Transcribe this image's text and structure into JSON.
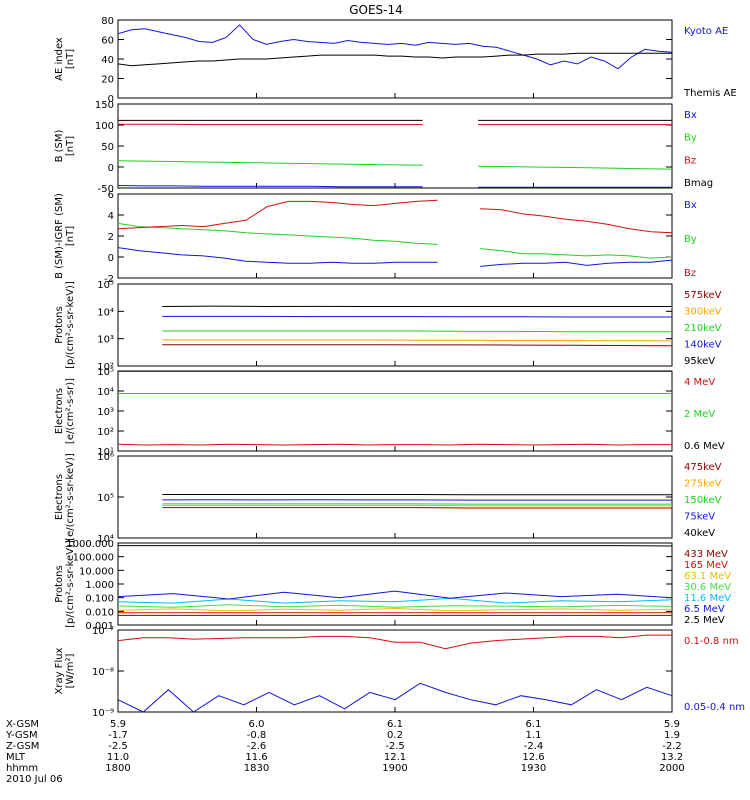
{
  "title": "GOES-14",
  "date_label": "2010 Jul 06",
  "colors": {
    "black": "#000000",
    "blue": "#1515d6",
    "green": "#22d022",
    "red": "#cc1010",
    "orange": "#ffa500",
    "cyan": "#00c0ff",
    "gold": "#e0c000",
    "lime": "#44dd44",
    "maroon": "#8b0000",
    "purple": "#a020a0"
  },
  "footer": {
    "rows": [
      {
        "label": "X-GSM",
        "values": [
          "5.9",
          "6.0",
          "6.1",
          "6.1",
          "5.9"
        ]
      },
      {
        "label": "Y-GSM",
        "values": [
          "-1.7",
          "-0.8",
          "0.2",
          "1.1",
          "1.9"
        ]
      },
      {
        "label": "Z-GSM",
        "values": [
          "-2.5",
          "-2.6",
          "-2.5",
          "-2.4",
          "-2.2"
        ]
      },
      {
        "label": "MLT",
        "values": [
          "11.0",
          "11.6",
          "12.1",
          "12.6",
          "13.2"
        ]
      },
      {
        "label": "hhmm",
        "values": [
          "1800",
          "1830",
          "1900",
          "1930",
          "2000"
        ]
      }
    ]
  },
  "chart_data": [
    {
      "type": "line",
      "id": "ae",
      "ylabel": "AE index\n[nT]",
      "ylim": [
        0,
        80
      ],
      "scale": "linear",
      "ticks": [
        "0",
        "20",
        "40",
        "60",
        "80"
      ],
      "tickvals": [
        0,
        20,
        40,
        60,
        80
      ],
      "x_range": [
        "18:00",
        "20:00"
      ],
      "series": [
        {
          "name": "Kyoto AE",
          "color": "#1515d6",
          "values": [
            66,
            70,
            71,
            68,
            65,
            62,
            58,
            57,
            62,
            75,
            60,
            55,
            58,
            60,
            58,
            57,
            56,
            59,
            57,
            56,
            55,
            56,
            54,
            57,
            56,
            55,
            56,
            53,
            52,
            48,
            44,
            40,
            34,
            38,
            35,
            42,
            38,
            30,
            42,
            50,
            48,
            47
          ]
        },
        {
          "name": "Themis AE",
          "color": "#000000",
          "values": [
            35,
            33,
            34,
            35,
            36,
            37,
            38,
            38,
            39,
            40,
            40,
            40,
            41,
            42,
            43,
            44,
            44,
            44,
            44,
            44,
            43,
            43,
            42,
            42,
            41,
            42,
            42,
            42,
            43,
            44,
            44,
            45,
            45,
            45,
            46,
            46,
            46,
            46,
            46,
            46,
            46,
            46
          ]
        }
      ]
    },
    {
      "type": "line",
      "id": "bsm",
      "ylabel": "B (SM)\n[nT]",
      "ylim": [
        -50,
        150
      ],
      "scale": "linear",
      "ticks": [
        "-50",
        "0",
        "50",
        "100",
        "150"
      ],
      "tickvals": [
        -50,
        0,
        50,
        100,
        150
      ],
      "gap": [
        0.58,
        0.63
      ],
      "series": [
        {
          "name": "Bx",
          "color": "#1515d6",
          "values": [
            -44,
            -45,
            -45,
            -46,
            -46,
            -46,
            -46,
            -46,
            -47,
            -47,
            -47,
            -47,
            -47,
            -48,
            -48,
            -48,
            -48,
            -48,
            -48,
            -48,
            -48
          ]
        },
        {
          "name": "By",
          "color": "#22d022",
          "values": [
            15,
            14,
            13,
            12,
            11,
            10,
            9,
            8,
            7,
            6,
            5,
            4,
            3,
            2,
            1,
            0,
            -1,
            -2,
            -3,
            -4,
            -5
          ]
        },
        {
          "name": "Bz",
          "color": "#cc1010",
          "values": [
            102,
            102,
            102,
            101,
            101,
            101,
            101,
            101,
            101,
            101,
            101,
            101,
            101,
            101,
            101,
            101,
            101,
            101,
            101,
            101,
            101
          ]
        },
        {
          "name": "Bmag",
          "color": "#000000",
          "values": [
            111,
            111,
            111,
            111,
            111,
            111,
            111,
            111,
            111,
            111,
            111,
            111,
            111,
            111,
            111,
            111,
            111,
            111,
            111,
            111,
            111
          ]
        }
      ]
    },
    {
      "type": "line",
      "id": "bigrf",
      "ylabel": "B (SM)-IGRF (SM)\n[nT]",
      "ylim": [
        -2,
        6
      ],
      "scale": "linear",
      "ticks": [
        "-2",
        "0",
        "2",
        "4",
        "6"
      ],
      "tickvals": [
        -2,
        0,
        2,
        4,
        6
      ],
      "gap": [
        0.58,
        0.63
      ],
      "series": [
        {
          "name": "Bx",
          "color": "#1515d6",
          "values": [
            0.9,
            0.6,
            0.4,
            0.2,
            0.1,
            -0.1,
            -0.4,
            -0.5,
            -0.6,
            -0.6,
            -0.5,
            -0.6,
            -0.6,
            -0.5,
            -0.5,
            -0.5,
            -0.7,
            -0.9,
            -0.7,
            -0.6,
            -0.6,
            -0.5,
            -0.8,
            -0.6,
            -0.5,
            -0.5,
            -0.3
          ]
        },
        {
          "name": "By",
          "color": "#22d022",
          "values": [
            3.2,
            2.9,
            2.8,
            2.7,
            2.6,
            2.5,
            2.3,
            2.2,
            2.1,
            2.0,
            1.9,
            1.8,
            1.6,
            1.5,
            1.3,
            1.2,
            1.0,
            0.8,
            0.6,
            0.3,
            0.3,
            0.2,
            0.1,
            0.2,
            0.1,
            -0.1,
            0.0
          ]
        },
        {
          "name": "Bz",
          "color": "#cc1010",
          "values": [
            2.7,
            2.8,
            2.9,
            3.0,
            2.9,
            3.2,
            3.5,
            4.8,
            5.3,
            5.3,
            5.2,
            5.0,
            4.9,
            5.1,
            5.3,
            5.4,
            5.1,
            4.6,
            4.5,
            4.1,
            3.9,
            3.6,
            3.4,
            3.1,
            2.7,
            2.4,
            2.3
          ]
        }
      ]
    },
    {
      "type": "line",
      "id": "protons1",
      "ylabel": "Protons\n[p/(cm²-s-sr-keV)]",
      "ylim": [
        100,
        100000
      ],
      "scale": "log",
      "ticks": [
        "10²",
        "10³",
        "10⁴",
        "10⁵"
      ],
      "tickvals": [
        100,
        1000,
        10000,
        100000
      ],
      "x_start": 0.08,
      "series": [
        {
          "name": "575keV",
          "color": "#8b0000",
          "values": [
            600,
            600,
            600,
            600,
            600,
            590,
            590,
            580,
            570,
            560,
            550
          ]
        },
        {
          "name": "300keV",
          "color": "#ffa500",
          "values": [
            900,
            900,
            900,
            900,
            900,
            880,
            870,
            860,
            850,
            840,
            830
          ]
        },
        {
          "name": "210keV",
          "color": "#22d022",
          "values": [
            1900,
            1900,
            1900,
            1900,
            1900,
            1900,
            1850,
            1850,
            1800,
            1800,
            1800
          ]
        },
        {
          "name": "140keV",
          "color": "#1515d6",
          "values": [
            6500,
            6500,
            6500,
            6400,
            6400,
            6400,
            6300,
            6300,
            6200,
            6200,
            6200
          ]
        },
        {
          "name": "95keV",
          "color": "#000000",
          "values": [
            15000,
            15500,
            15000,
            15200,
            15000,
            15000,
            15000,
            15000,
            15000,
            15000,
            15000
          ]
        }
      ]
    },
    {
      "type": "line",
      "id": "electrons1",
      "ylabel": "Electrons\n[e/(cm²-s-sr)]",
      "ylim": [
        10,
        100000
      ],
      "scale": "log",
      "ticks": [
        "10¹",
        "10²",
        "10³",
        "10⁴",
        "10⁵"
      ],
      "tickvals": [
        10,
        100,
        1000,
        10000,
        100000
      ],
      "series": [
        {
          "name": "4 MeV",
          "color": "#cc1010",
          "values": [
            22,
            20,
            21,
            20,
            22,
            21,
            20,
            21,
            22,
            20,
            21,
            21,
            20,
            22,
            21,
            20,
            21,
            22,
            20,
            21,
            21
          ]
        },
        {
          "name": "2 MeV",
          "color": "#22d022",
          "values": [
            7500,
            7500,
            7500,
            7500,
            7500,
            7500,
            7500,
            7500,
            7500,
            7500,
            7500,
            7500,
            7500,
            7500,
            7500,
            7500,
            7500,
            7500,
            7500,
            7500,
            7500
          ]
        },
        {
          "name": "0.6 MeV",
          "color": "#000000",
          "values": [
            98000,
            98000,
            98000,
            98000,
            98000,
            98000,
            98000,
            98000,
            98000,
            98000,
            98000,
            98000,
            98000,
            98000,
            98000,
            98000,
            98000,
            98000,
            98000,
            98000,
            98000
          ]
        }
      ]
    },
    {
      "type": "line",
      "id": "electrons2",
      "ylabel": "Electrons\n[e/(cm²-s-sr-keV)]",
      "ylim": [
        10000,
        1000000
      ],
      "scale": "log",
      "ticks": [
        "10⁴",
        "10⁵",
        "10⁶"
      ],
      "tickvals": [
        10000,
        100000,
        1000000
      ],
      "x_start": 0.08,
      "series": [
        {
          "name": "475keV",
          "color": "#8b0000",
          "values": [
            55000,
            55000,
            55000,
            55000,
            55000,
            55000,
            54000,
            54000,
            54000,
            54000,
            54000
          ]
        },
        {
          "name": "275keV",
          "color": "#ffa500",
          "values": [
            62000,
            62000,
            62000,
            62000,
            62000,
            62000,
            61000,
            61000,
            61000,
            61000,
            61000
          ]
        },
        {
          "name": "150keV",
          "color": "#22d022",
          "values": [
            68000,
            68000,
            68000,
            68000,
            68000,
            68000,
            67000,
            67000,
            67000,
            67000,
            67000
          ]
        },
        {
          "name": "75keV",
          "color": "#1515d6",
          "values": [
            85000,
            86000,
            85000,
            86000,
            85000,
            85000,
            84000,
            84000,
            84000,
            84000,
            84000
          ]
        },
        {
          "name": "40keV",
          "color": "#000000",
          "values": [
            115000,
            115000,
            115000,
            115000,
            115000,
            115000,
            114000,
            114000,
            114000,
            114000,
            114000
          ]
        }
      ]
    },
    {
      "type": "line",
      "id": "protons2",
      "ylabel": "Protons\n[p/(cm²-s-sr-keV)]",
      "ylim": [
        0.001,
        1000
      ],
      "scale": "log",
      "ticks": [
        "0.001",
        "0.010",
        "0.100",
        "1.000",
        "10.000",
        "100.000",
        "1000.000"
      ],
      "tickvals": [
        0.001,
        0.01,
        0.1,
        1,
        10,
        100,
        1000
      ],
      "series": [
        {
          "name": "433 MeV",
          "color": "#8b0000",
          "values": [
            0.005,
            0.005,
            0.005,
            0.005,
            0.005,
            0.005,
            0.005,
            0.005,
            0.005,
            0.005,
            0.005
          ]
        },
        {
          "name": "165 MeV",
          "color": "#cc1010",
          "values": [
            0.008,
            0.008,
            0.008,
            0.008,
            0.008,
            0.008,
            0.008,
            0.008,
            0.008,
            0.008,
            0.008
          ]
        },
        {
          "name": "63.1 MeV",
          "color": "#e0c000",
          "values": [
            0.012,
            0.015,
            0.011,
            0.014,
            0.012,
            0.016,
            0.011,
            0.013,
            0.015,
            0.012,
            0.014
          ]
        },
        {
          "name": "30.6 MeV",
          "color": "#44dd44",
          "values": [
            0.025,
            0.02,
            0.03,
            0.022,
            0.028,
            0.02,
            0.026,
            0.024,
            0.021,
            0.027,
            0.023
          ]
        },
        {
          "name": "11.6 MeV",
          "color": "#00c0ff",
          "values": [
            0.05,
            0.04,
            0.08,
            0.04,
            0.06,
            0.05,
            0.09,
            0.04,
            0.06,
            0.05,
            0.07
          ]
        },
        {
          "name": "6.5 MeV",
          "color": "#1515d6",
          "values": [
            0.12,
            0.2,
            0.08,
            0.25,
            0.1,
            0.3,
            0.09,
            0.22,
            0.12,
            0.18,
            0.1
          ]
        },
        {
          "name": "2.5 MeV",
          "color": "#000000",
          "values": [
            650,
            650,
            650,
            650,
            650,
            650,
            650,
            650,
            650,
            650,
            600
          ]
        }
      ]
    },
    {
      "type": "line",
      "id": "xray",
      "ylabel": "Xray Flux\n[W/m²]",
      "ylim": [
        1e-09,
        1e-07
      ],
      "scale": "log",
      "ticks": [
        "10⁻⁹",
        "10⁻⁸",
        "10⁻⁷"
      ],
      "tickvals": [
        1e-09,
        1e-08,
        1e-07
      ],
      "series": [
        {
          "name": "0.1-0.8 nm",
          "color": "#cc1010",
          "values": [
            5.5e-08,
            6.5e-08,
            6.5e-08,
            6e-08,
            6.2e-08,
            6.5e-08,
            6.5e-08,
            6.5e-08,
            7e-08,
            7e-08,
            6.5e-08,
            5e-08,
            5e-08,
            3.5e-08,
            4.8e-08,
            5.5e-08,
            6e-08,
            6.5e-08,
            7e-08,
            7e-08,
            6.5e-08,
            7.5e-08,
            7.5e-08
          ]
        },
        {
          "name": "0.05-0.4 nm",
          "color": "#1515d6",
          "values": [
            2e-09,
            1e-09,
            3.5e-09,
            1e-09,
            2.5e-09,
            1.5e-09,
            3e-09,
            1.5e-09,
            2.5e-09,
            1.2e-09,
            3e-09,
            2e-09,
            5e-09,
            3e-09,
            2e-09,
            1.5e-09,
            2.5e-09,
            2e-09,
            1.5e-09,
            3.5e-09,
            2e-09,
            4e-09,
            2.5e-09
          ]
        }
      ]
    }
  ]
}
